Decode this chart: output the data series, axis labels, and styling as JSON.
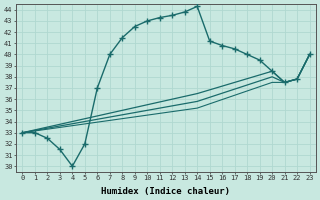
{
  "xlabel": "Humidex (Indice chaleur)",
  "xlim": [
    -0.5,
    23.5
  ],
  "ylim": [
    29.5,
    44.5
  ],
  "xticks": [
    0,
    1,
    2,
    3,
    4,
    5,
    6,
    7,
    8,
    9,
    10,
    11,
    12,
    13,
    14,
    15,
    16,
    17,
    18,
    19,
    20,
    21,
    22,
    23
  ],
  "yticks": [
    30,
    31,
    32,
    33,
    34,
    35,
    36,
    37,
    38,
    39,
    40,
    41,
    42,
    43,
    44
  ],
  "background_color": "#c8e8e0",
  "grid_color": "#b0d8d0",
  "line_color": "#1a6b6b",
  "main_series": {
    "x": [
      0,
      1,
      2,
      3,
      4,
      5,
      6,
      7,
      8,
      9,
      10,
      11,
      12,
      13,
      14,
      15,
      16,
      17,
      18,
      19,
      20,
      21,
      22,
      23
    ],
    "y": [
      33,
      33,
      32.5,
      31.5,
      30,
      32,
      37,
      40,
      41.5,
      42.5,
      43,
      43.3,
      43.5,
      43.8,
      44.3,
      41.2,
      40.8,
      40.5,
      40,
      39.5,
      38.5,
      37.5,
      37.8,
      40
    ],
    "marker": "+",
    "markersize": 4,
    "linewidth": 1.0
  },
  "trend_lines": [
    {
      "x": [
        0,
        14,
        20,
        21,
        22,
        23
      ],
      "y": [
        33,
        36.5,
        38.5,
        37.5,
        37.8,
        40
      ],
      "linewidth": 0.9
    },
    {
      "x": [
        0,
        14,
        20,
        21,
        22,
        23
      ],
      "y": [
        33,
        35.8,
        38.0,
        37.5,
        37.8,
        40
      ],
      "linewidth": 0.9
    },
    {
      "x": [
        0,
        14,
        20,
        21,
        22,
        23
      ],
      "y": [
        33,
        35.2,
        37.5,
        37.5,
        37.8,
        40
      ],
      "linewidth": 0.8
    }
  ]
}
